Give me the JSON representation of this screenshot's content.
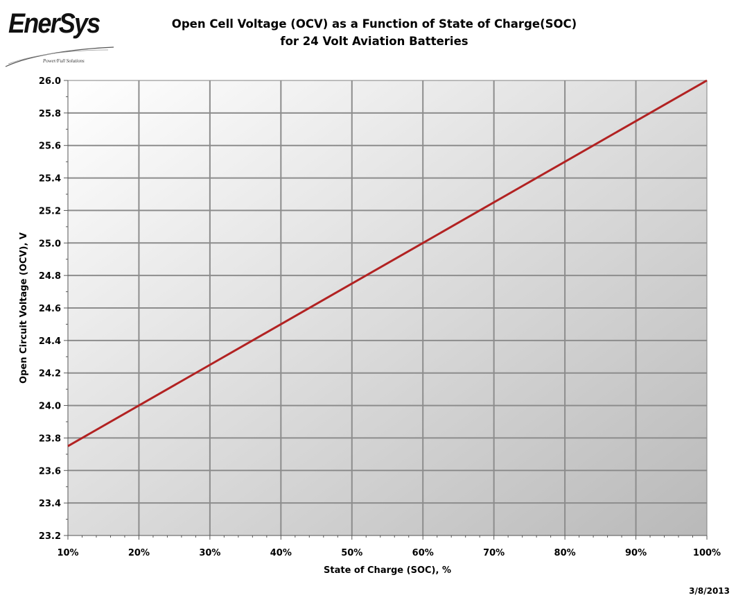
{
  "logo": {
    "wordmark": "EnerSys",
    "tagline": "Power/Full Solutions"
  },
  "header": {
    "title_line1": "Open Cell Voltage (OCV) as a Function of State of Charge(SOC)",
    "title_line2": "for 24 Volt Aviation Batteries"
  },
  "footer": {
    "date": "3/8/2013"
  },
  "colors": {
    "series_line": "#b22222",
    "plot_gradient_top": "#ffffff",
    "plot_gradient_bottom": "#b9b9b9",
    "gridline": "#8c8c8c"
  },
  "chart_data": {
    "type": "line",
    "title": "Open Cell Voltage (OCV) as a Function of State of Charge(SOC) for 24 Volt Aviation Batteries",
    "xlabel": "State of Charge (SOC), %",
    "ylabel": "Open Circuit Voltage (OCV), V",
    "xlim": [
      10,
      100
    ],
    "ylim": [
      23.2,
      26.0
    ],
    "x_ticks": [
      10,
      20,
      30,
      40,
      50,
      60,
      70,
      80,
      90,
      100
    ],
    "x_tick_labels": [
      "10%",
      "20%",
      "30%",
      "40%",
      "50%",
      "60%",
      "70%",
      "80%",
      "90%",
      "100%"
    ],
    "y_ticks": [
      23.2,
      23.4,
      23.6,
      23.8,
      24.0,
      24.2,
      24.4,
      24.6,
      24.8,
      25.0,
      25.2,
      25.4,
      25.6,
      25.8,
      26.0
    ],
    "y_tick_labels": [
      "23.2",
      "23.4",
      "23.6",
      "23.8",
      "24.0",
      "24.2",
      "24.4",
      "24.6",
      "24.8",
      "25.0",
      "25.2",
      "25.4",
      "25.6",
      "25.8",
      "26.0"
    ],
    "grid": true,
    "legend": "none",
    "series": [
      {
        "x": [
          10,
          20,
          30,
          40,
          50,
          60,
          70,
          80,
          90,
          100
        ],
        "y": [
          23.75,
          24.0,
          24.25,
          24.5,
          24.75,
          25.0,
          25.25,
          25.5,
          25.75,
          26.0
        ]
      }
    ]
  }
}
